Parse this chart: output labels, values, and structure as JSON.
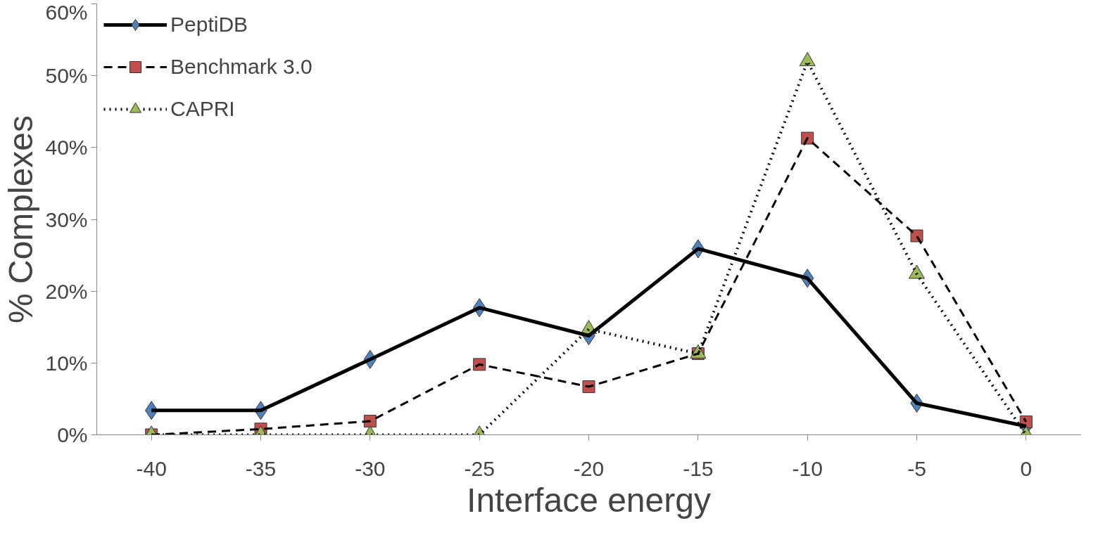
{
  "chart_data": {
    "type": "line",
    "xlabel": "Interface energy",
    "ylabel": "% Complexes",
    "categories": [
      "-40",
      "-35",
      "-30",
      "-25",
      "-20",
      "-15",
      "-10",
      "-5",
      "0"
    ],
    "series": [
      {
        "name": "PeptiDB",
        "color": "#4f81bd",
        "marker": "diamond",
        "line_style": "solid",
        "values": [
          3.4,
          3.4,
          10.5,
          17.7,
          13.8,
          25.9,
          21.8,
          4.4,
          1.2
        ]
      },
      {
        "name": "Benchmark 3.0",
        "color": "#c0504d",
        "marker": "square",
        "line_style": "dashed",
        "values": [
          0,
          0.8,
          1.9,
          9.8,
          6.7,
          11.3,
          41.3,
          27.7,
          1.8
        ]
      },
      {
        "name": "CAPRI",
        "color": "#9bbb59",
        "marker": "triangle",
        "line_style": "dotted",
        "values": [
          0,
          0,
          0,
          0,
          14.7,
          11.3,
          52,
          22.4,
          0
        ]
      }
    ],
    "ylim": [
      0,
      60
    ],
    "yticks": [
      {
        "value": 0,
        "label": "0%"
      },
      {
        "value": 10,
        "label": "10%"
      },
      {
        "value": 20,
        "label": "20%"
      },
      {
        "value": 30,
        "label": "30%"
      },
      {
        "value": 40,
        "label": "40%"
      },
      {
        "value": 50,
        "label": "50%"
      },
      {
        "value": 60,
        "label": "60%"
      }
    ],
    "grid": false,
    "legend": "top left"
  }
}
